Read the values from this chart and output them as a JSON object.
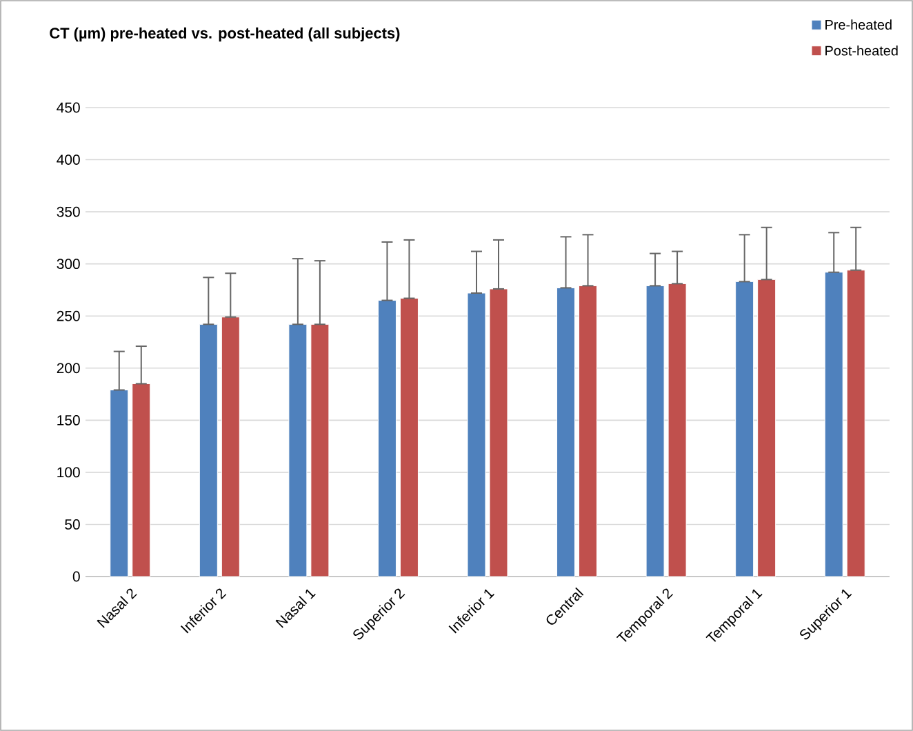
{
  "chart_data": {
    "type": "bar",
    "title": "CT (µm) pre-heated vs. post-heated (all subjects)",
    "categories": [
      "Nasal 2",
      "Inferior 2",
      "Nasal 1",
      "Superior 2",
      "Inferior 1",
      "Central",
      "Temporal 2",
      "Temporal 1",
      "Superior 1"
    ],
    "series": [
      {
        "name": "Pre-heated",
        "color": "#4f81bd",
        "values": [
          179,
          242,
          242,
          265,
          272,
          277,
          279,
          283,
          292
        ],
        "errors": [
          [
            179,
            216
          ],
          [
            242,
            287
          ],
          [
            242,
            305
          ],
          [
            265,
            321
          ],
          [
            272,
            312
          ],
          [
            277,
            326
          ],
          [
            279,
            310
          ],
          [
            283,
            328
          ],
          [
            292,
            330
          ]
        ]
      },
      {
        "name": "Post-heated",
        "color": "#c0504d",
        "values": [
          185,
          249,
          242,
          267,
          276,
          279,
          281,
          285,
          294
        ],
        "errors": [
          [
            185,
            221
          ],
          [
            249,
            291
          ],
          [
            242,
            303
          ],
          [
            267,
            323
          ],
          [
            276,
            323
          ],
          [
            279,
            328
          ],
          [
            281,
            312
          ],
          [
            285,
            335
          ],
          [
            294,
            335
          ]
        ]
      }
    ],
    "ylim": [
      0,
      450
    ],
    "yticks": [
      0,
      50,
      100,
      150,
      200,
      250,
      300,
      350,
      400,
      450
    ],
    "grid": "y",
    "legend": "top right"
  }
}
